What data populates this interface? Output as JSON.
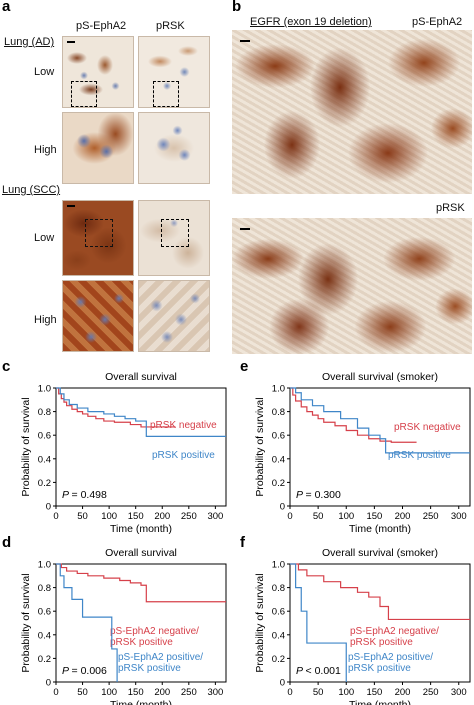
{
  "panel_letters": [
    "a",
    "b",
    "c",
    "d",
    "e",
    "f"
  ],
  "panel_a": {
    "col_headers": [
      "pS-EphA2",
      "pRSK"
    ],
    "groups": [
      {
        "title": "Lung (AD)",
        "rows": [
          "Low",
          "High"
        ]
      },
      {
        "title": "Lung (SCC)",
        "rows": [
          "Low",
          "High"
        ]
      }
    ]
  },
  "panel_b": {
    "title": "EGFR (exon 19 deletion)",
    "labels": [
      "pS-EphA2",
      "pRSK"
    ]
  },
  "colors": {
    "red": "#d6404a",
    "blue": "#3f86c8",
    "stain_dark": "#7a3418",
    "stain_mid": "#b2622f",
    "stroma": "#ede3d6"
  },
  "chart_data": [
    {
      "id": "c",
      "type": "line",
      "title": "Overall survival",
      "xlabel": "Time (month)",
      "ylabel": "Probability of survival",
      "xlim": [
        0,
        320
      ],
      "ylim": [
        0,
        1.0
      ],
      "xticks": [
        "0",
        "50",
        "100",
        "150",
        "200",
        "250",
        "300"
      ],
      "yticks": [
        "0",
        "0.2",
        "0.4",
        "0.6",
        "0.8",
        "1.0"
      ],
      "pvalue": "= 0.498",
      "series": [
        {
          "name": "pRSK negative",
          "color": "red",
          "x": [
            0,
            5,
            10,
            15,
            20,
            30,
            40,
            50,
            60,
            75,
            90,
            110,
            140,
            160,
            180,
            225
          ],
          "y": [
            1.0,
            0.95,
            0.91,
            0.88,
            0.85,
            0.82,
            0.8,
            0.78,
            0.76,
            0.74,
            0.72,
            0.71,
            0.69,
            0.67,
            0.67,
            0.67
          ]
        },
        {
          "name": "pRSK positive",
          "color": "blue",
          "x": [
            0,
            8,
            15,
            25,
            40,
            60,
            90,
            110,
            130,
            150,
            170,
            320
          ],
          "y": [
            1.0,
            0.95,
            0.9,
            0.86,
            0.83,
            0.8,
            0.78,
            0.76,
            0.74,
            0.72,
            0.59,
            0.59
          ]
        }
      ]
    },
    {
      "id": "e",
      "type": "line",
      "title": "Overall survival (smoker)",
      "xlabel": "Time (month)",
      "ylabel": "Probability of survival",
      "xlim": [
        0,
        320
      ],
      "ylim": [
        0,
        1.0
      ],
      "xticks": [
        "0",
        "50",
        "100",
        "150",
        "200",
        "250",
        "300"
      ],
      "yticks": [
        "0",
        "0.2",
        "0.4",
        "0.6",
        "0.8",
        "1.0"
      ],
      "pvalue": "= 0.300",
      "series": [
        {
          "name": "pRSK negative",
          "color": "red",
          "x": [
            0,
            5,
            10,
            20,
            30,
            40,
            50,
            60,
            80,
            100,
            120,
            140,
            160,
            180,
            225
          ],
          "y": [
            1.0,
            0.94,
            0.89,
            0.84,
            0.8,
            0.77,
            0.74,
            0.71,
            0.68,
            0.64,
            0.6,
            0.57,
            0.55,
            0.54,
            0.54
          ]
        },
        {
          "name": "pRSK positive",
          "color": "blue",
          "x": [
            0,
            10,
            20,
            40,
            60,
            90,
            120,
            140,
            160,
            170,
            320
          ],
          "y": [
            1.0,
            0.96,
            0.9,
            0.85,
            0.8,
            0.74,
            0.66,
            0.6,
            0.57,
            0.45,
            0.45
          ]
        }
      ]
    },
    {
      "id": "d",
      "type": "line",
      "title": "Overall survival",
      "xlabel": "Time (month)",
      "ylabel": "Probability of survival",
      "xlim": [
        0,
        320
      ],
      "ylim": [
        0,
        1.0
      ],
      "xticks": [
        "0",
        "50",
        "100",
        "150",
        "200",
        "250",
        "300"
      ],
      "yticks": [
        "0",
        "0.2",
        "0.4",
        "0.6",
        "0.8",
        "1.0"
      ],
      "pvalue": "= 0.006",
      "series": [
        {
          "name": "pS-EphA2 negative/ pRSK positive",
          "color": "red",
          "x": [
            0,
            10,
            20,
            40,
            60,
            90,
            120,
            140,
            160,
            170,
            320
          ],
          "y": [
            1.0,
            0.97,
            0.94,
            0.92,
            0.9,
            0.88,
            0.86,
            0.84,
            0.82,
            0.68,
            0.68
          ]
        },
        {
          "name": "pS-EphA2 positive/ pRSK positive",
          "color": "blue",
          "x": [
            0,
            8,
            15,
            30,
            50,
            90,
            105,
            115
          ],
          "y": [
            1.0,
            0.9,
            0.8,
            0.7,
            0.55,
            0.55,
            0.28,
            0.0
          ]
        }
      ]
    },
    {
      "id": "f",
      "type": "line",
      "title": "Overall survival (smoker)",
      "xlabel": "Time (month)",
      "ylabel": "Probability of survival",
      "xlim": [
        0,
        320
      ],
      "ylim": [
        0,
        1.0
      ],
      "xticks": [
        "0",
        "50",
        "100",
        "150",
        "200",
        "250",
        "300"
      ],
      "yticks": [
        "0",
        "0.2",
        "0.4",
        "0.6",
        "0.8",
        "1.0"
      ],
      "pvalue": "< 0.001",
      "series": [
        {
          "name": "pS-EphA2 negative/ pRSK positive",
          "color": "red",
          "x": [
            0,
            15,
            30,
            60,
            90,
            120,
            140,
            160,
            175,
            320
          ],
          "y": [
            1.0,
            0.95,
            0.9,
            0.85,
            0.8,
            0.76,
            0.72,
            0.64,
            0.53,
            0.53
          ]
        },
        {
          "name": "pS-EphA2 positive/ pRSK positive",
          "color": "blue",
          "x": [
            0,
            10,
            20,
            30,
            60,
            100
          ],
          "y": [
            1.0,
            0.8,
            0.6,
            0.33,
            0.33,
            0.0
          ]
        }
      ]
    }
  ]
}
